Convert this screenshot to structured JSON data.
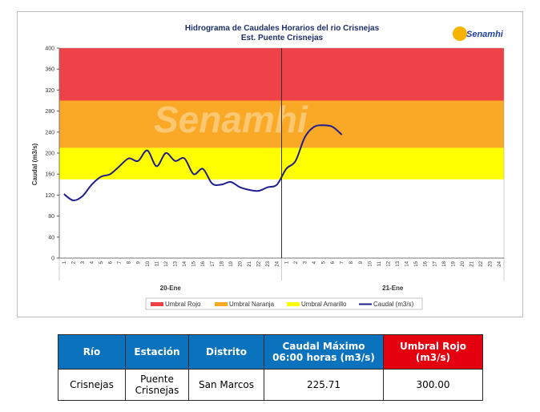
{
  "chart_data": {
    "type": "line",
    "title": "Hidrograma de Caudales Horarios del rio Crisnejas",
    "subtitle": "Est. Puente Crisnejas",
    "ylabel": "Caudal  (m3/s)",
    "ylim": [
      0,
      400
    ],
    "yticks": [
      0,
      40,
      80,
      120,
      160,
      200,
      240,
      280,
      320,
      360,
      400
    ],
    "grid": false,
    "legend_position": "bottom",
    "days": [
      "20-Ene",
      "21-Ene"
    ],
    "hour_labels": [
      "1",
      "2",
      "3",
      "4",
      "5",
      "6",
      "7",
      "8",
      "9",
      "10",
      "11",
      "12",
      "13",
      "14",
      "15",
      "16",
      "17",
      "18",
      "19",
      "20",
      "21",
      "22",
      "23",
      "24"
    ],
    "thresholds": [
      {
        "name": "Umbral Rojo",
        "from": 300,
        "to": 400,
        "color": "#ef4148"
      },
      {
        "name": "Umbral Naranja",
        "from": 210,
        "to": 300,
        "color": "#f9a925"
      },
      {
        "name": "Umbral Amarillo",
        "from": 150,
        "to": 210,
        "color": "#ffff00"
      }
    ],
    "series": [
      {
        "name": "Caudal (m3/s)",
        "color": "#1f1f8f",
        "x": [
          1,
          2,
          3,
          4,
          5,
          6,
          7,
          8,
          9,
          10,
          11,
          12,
          13,
          14,
          15,
          16,
          17,
          18,
          19,
          20,
          21,
          22,
          23,
          24,
          25,
          26,
          27,
          28,
          29,
          30,
          31
        ],
        "values": [
          122,
          110,
          118,
          140,
          155,
          160,
          175,
          190,
          185,
          205,
          175,
          200,
          185,
          190,
          160,
          170,
          142,
          140,
          145,
          135,
          130,
          128,
          135,
          140,
          170,
          185,
          230,
          250,
          253,
          250,
          235
        ]
      }
    ],
    "legend": [
      "Umbral Rojo",
      "Umbral Naranja",
      "Umbral Amarillo",
      "Caudal (m3/s)"
    ]
  },
  "logo_text": "Senamhi",
  "watermark_text": "Senamhi",
  "table": {
    "headers": [
      "Río",
      "Estación",
      "Distrito",
      "Caudal Máximo 06:00 horas (m3/s)",
      "Umbral Rojo (m3/s)"
    ],
    "header_colors": [
      "#0b73bd",
      "#0b73bd",
      "#0b73bd",
      "#0b73bd",
      "#e4000f"
    ],
    "row": [
      "Crisnejas",
      "Puente Crisnejas",
      "San Marcos",
      "225.71",
      "300.00"
    ]
  }
}
